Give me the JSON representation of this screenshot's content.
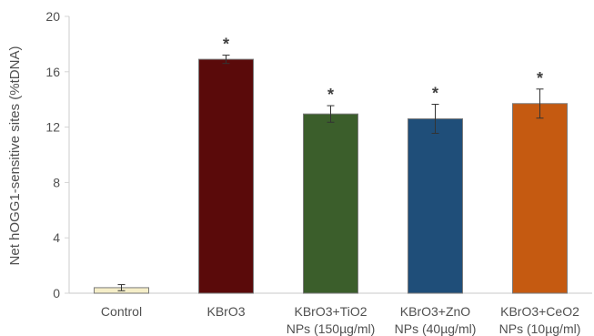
{
  "chart_data": {
    "type": "bar",
    "ylabel": "Net hOGG1-sensitive sites (%tDNA)",
    "ylim": [
      0,
      20
    ],
    "yticks": [
      0,
      4,
      8,
      12,
      16,
      20
    ],
    "grid": false,
    "categories": [
      [
        "Control"
      ],
      [
        "KBrO3"
      ],
      [
        "KBrO3+TiO2",
        "NPs (150µg/ml)"
      ],
      [
        "KBrO3+ZnO",
        "NPs (40µg/ml)"
      ],
      [
        "KBrO3+CeO2",
        "NPs (10µg/ml)"
      ]
    ],
    "values": [
      0.4,
      16.9,
      12.95,
      12.6,
      13.7
    ],
    "errors": [
      0.22,
      0.3,
      0.6,
      1.05,
      1.05
    ],
    "significance": [
      "",
      "*",
      "*",
      "*",
      "*"
    ],
    "colors": [
      "#F5EEC8",
      "#5A0A0A",
      "#3B5E2B",
      "#1F4E79",
      "#C55A11"
    ]
  }
}
